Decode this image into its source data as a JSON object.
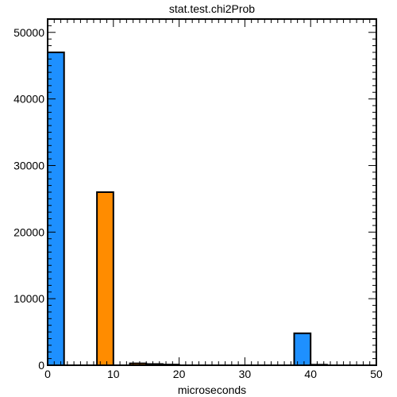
{
  "chart_data": {
    "type": "bar",
    "title": "stat.test.chi2Prob",
    "xlabel": "microseconds",
    "ylabel": "",
    "xlim": [
      0,
      50
    ],
    "ylim": [
      0,
      52000
    ],
    "x_ticks": [
      0,
      10,
      20,
      30,
      40,
      50
    ],
    "y_ticks": [
      0,
      10000,
      20000,
      30000,
      40000,
      50000
    ],
    "grid": false,
    "bars": [
      {
        "x0": 0,
        "x1": 2.5,
        "value": 47000,
        "color": "#1e90ff"
      },
      {
        "x0": 7.5,
        "x1": 10,
        "value": 26000,
        "color": "#ff8c00"
      },
      {
        "x0": 12.5,
        "x1": 15,
        "value": 280,
        "color": "#ff8c00"
      },
      {
        "x0": 15,
        "x1": 17.5,
        "value": 180,
        "color": "#ff8c00"
      },
      {
        "x0": 17.5,
        "x1": 20,
        "value": 100,
        "color": "#ff8c00"
      },
      {
        "x0": 37.5,
        "x1": 40,
        "value": 4800,
        "color": "#1e90ff"
      },
      {
        "x0": 40,
        "x1": 42.5,
        "value": 80,
        "color": "#1e90ff"
      }
    ]
  }
}
